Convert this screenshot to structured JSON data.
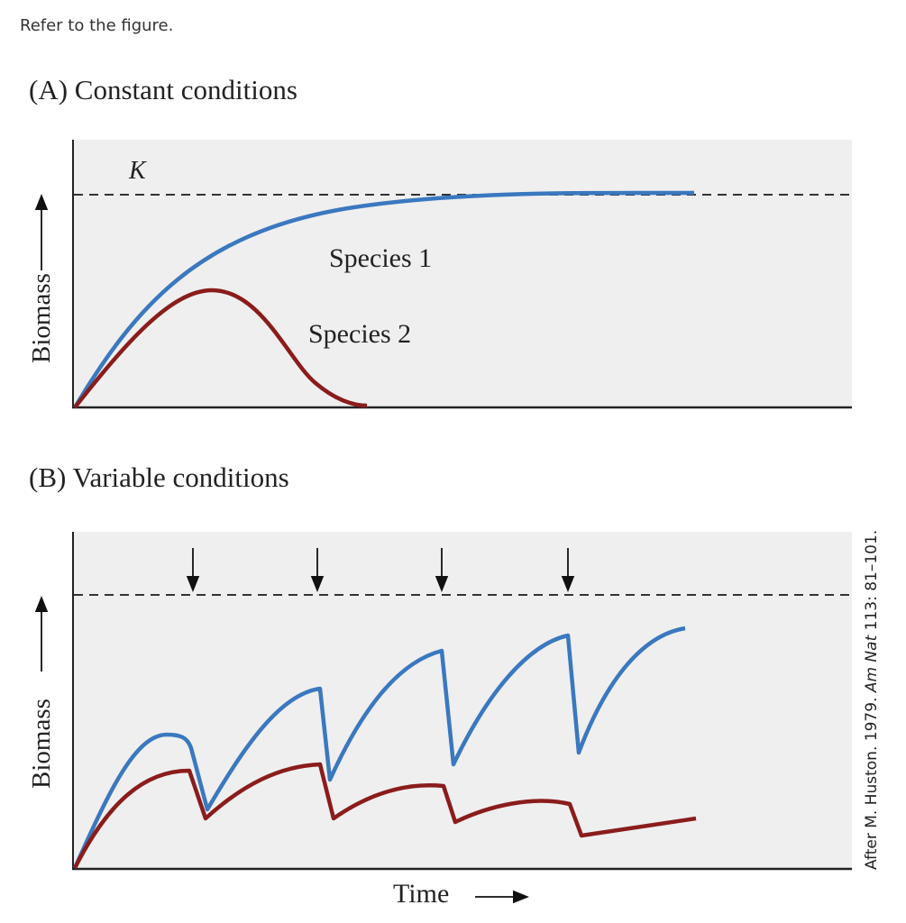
{
  "prompt": "Refer to the figure.",
  "panel_a": {
    "title": "(A) Constant conditions",
    "k_label": "K",
    "y_label": "Biomass",
    "species_1": "Species 1",
    "species_2": "Species 2"
  },
  "panel_b": {
    "title": "(B) Variable conditions",
    "y_label": "Biomass",
    "x_label": "Time",
    "disturbance_count": 4
  },
  "credit": {
    "prefix": "After M. Huston. 1979. ",
    "journal": "Am Nat",
    "suffix": " 113: 81–101."
  },
  "colors": {
    "species_1": "#3a78bf",
    "species_2": "#8b1c1c",
    "background": "#efefef"
  }
}
